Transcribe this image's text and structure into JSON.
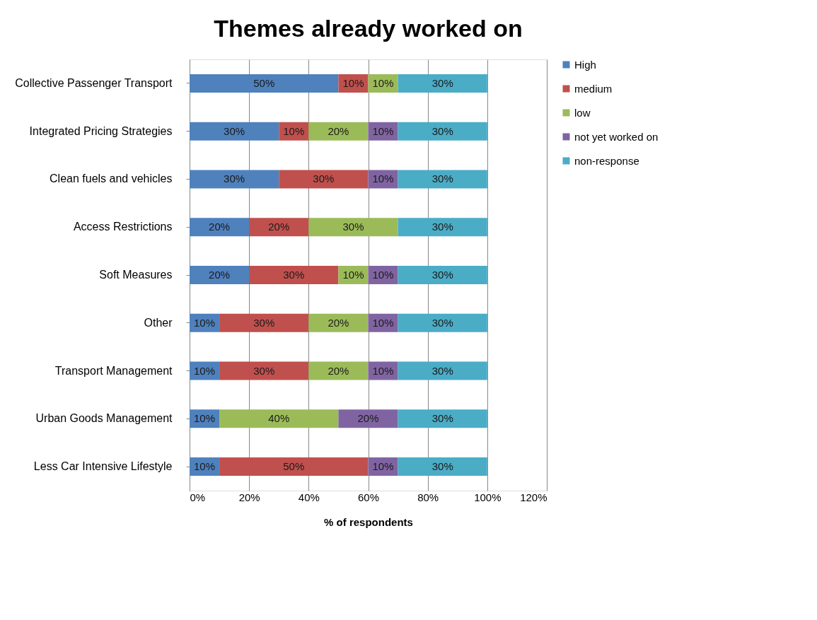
{
  "chart_data": {
    "type": "bar",
    "orientation": "horizontal",
    "stacked": true,
    "title": "Themes already worked on",
    "xlabel": "% of respondents",
    "categories": [
      "Collective Passenger Transport",
      "Integrated Pricing Strategies",
      "Clean fuels and vehicles",
      "Access Restrictions",
      "Soft Measures",
      "Other",
      "Transport Management",
      "Urban Goods Management",
      "Less Car Intensive Lifestyle"
    ],
    "series": [
      {
        "name": "High",
        "color": "#4f81bd",
        "values": [
          50,
          30,
          30,
          20,
          20,
          10,
          10,
          10,
          10
        ],
        "value_labels": [
          "50%",
          "30%",
          "30%",
          "20%",
          "20%",
          "10%",
          "10%",
          "10%",
          "10%"
        ]
      },
      {
        "name": "medium",
        "color": "#c0504d",
        "values": [
          10,
          10,
          30,
          20,
          30,
          30,
          30,
          null,
          50
        ],
        "value_labels": [
          "10%",
          "10%",
          "30%",
          "20%",
          "30%",
          "30%",
          "30%",
          null,
          "50%"
        ]
      },
      {
        "name": "low",
        "color": "#9bbb59",
        "values": [
          10,
          20,
          null,
          30,
          10,
          20,
          20,
          40,
          null
        ],
        "value_labels": [
          "10%",
          "20%",
          null,
          "30%",
          "10%",
          "20%",
          "20%",
          "40%",
          null
        ]
      },
      {
        "name": "not yet worked on",
        "color": "#8064a2",
        "values": [
          null,
          10,
          10,
          null,
          10,
          10,
          10,
          20,
          10
        ],
        "value_labels": [
          null,
          "10%",
          "10%",
          null,
          "10%",
          "10%",
          "10%",
          "20%",
          "10%"
        ]
      },
      {
        "name": "non-response",
        "color": "#4bacc6",
        "values": [
          30,
          30,
          30,
          30,
          30,
          30,
          30,
          30,
          30
        ],
        "value_labels": [
          "30%",
          "30%",
          "30%",
          "30%",
          "30%",
          "30%",
          "30%",
          "30%",
          "30%"
        ]
      }
    ],
    "xlim": [
      0,
      120
    ],
    "xticks": [
      {
        "value": 0,
        "label": "0%"
      },
      {
        "value": 20,
        "label": "20%"
      },
      {
        "value": 40,
        "label": "40%"
      },
      {
        "value": 60,
        "label": "60%"
      },
      {
        "value": 80,
        "label": "80%"
      },
      {
        "value": 100,
        "label": "100%"
      },
      {
        "value": 120,
        "label": "120%"
      }
    ],
    "grid": "x",
    "legend": "right"
  }
}
